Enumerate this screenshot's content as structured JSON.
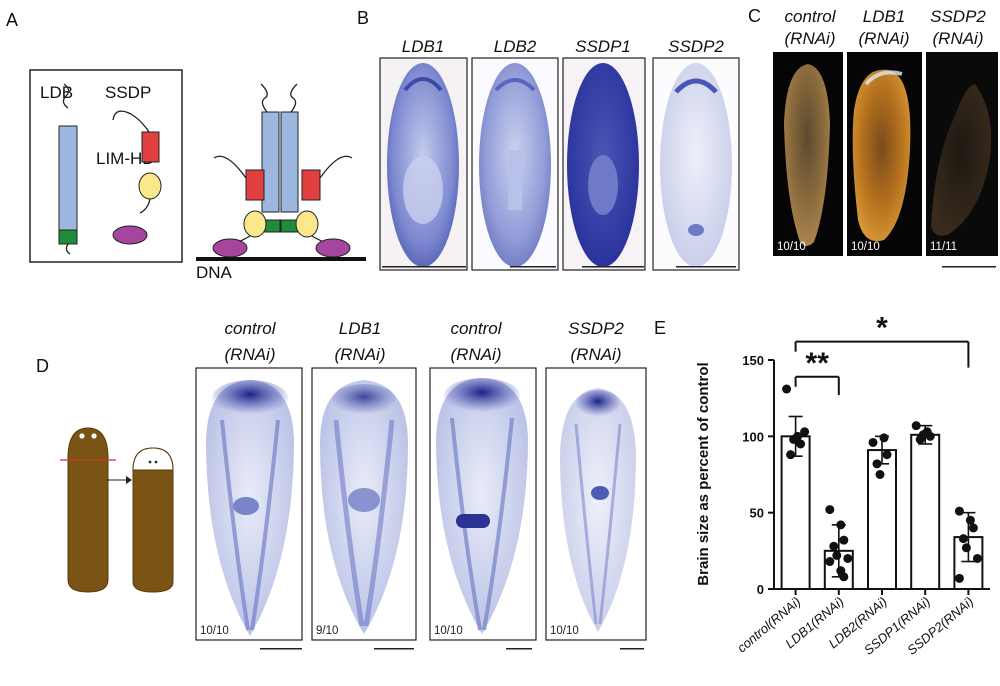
{
  "panels": {
    "A": {
      "letter": "A",
      "labels": {
        "ldb": "LDB",
        "ssdp": "SSDP",
        "limhd": "LIM-HD",
        "dna": "DNA"
      },
      "colors": {
        "ldb": "#9db8e0",
        "ssdp": "#e24040",
        "lim_yellow": "#fbe88a",
        "lim_purple": "#a6459e",
        "green": "#1e8c3a"
      }
    },
    "B": {
      "letter": "B",
      "genes": [
        "LDB1",
        "LDB2",
        "SSDP1",
        "SSDP2"
      ]
    },
    "C": {
      "letter": "C",
      "conditions": [
        {
          "line1": "control",
          "line2": "(RNAi)",
          "count": "10/10"
        },
        {
          "line1": "LDB1",
          "line2": "(RNAi)",
          "count": "10/10"
        },
        {
          "line1": "SSDP2",
          "line2": "(RNAi)",
          "count": "11/11"
        }
      ]
    },
    "D": {
      "letter": "D",
      "conditions": [
        {
          "line1": "control",
          "line2": "(RNAi)",
          "count": "10/10"
        },
        {
          "line1": "LDB1",
          "line2": "(RNAi)",
          "count": "9/10"
        },
        {
          "line1": "control",
          "line2": "(RNAi)",
          "count": "10/10"
        },
        {
          "line1": "SSDP2",
          "line2": "(RNAi)",
          "count": "10/10"
        }
      ]
    },
    "E": {
      "letter": "E"
    }
  },
  "chart_data": {
    "type": "bar",
    "categories": [
      "control(RNAi)",
      "LDB1(RNAi)",
      "LDB2(RNAi)",
      "SSDP1(RNAi)",
      "SSDP2(RNAi)"
    ],
    "values": [
      100,
      25,
      91,
      101,
      34
    ],
    "error": [
      13,
      17,
      9,
      6,
      16
    ],
    "points": [
      [
        131,
        100,
        95,
        88,
        98,
        103
      ],
      [
        52,
        42,
        32,
        28,
        22,
        20,
        18,
        12,
        8
      ],
      [
        96,
        99,
        88,
        82,
        75
      ],
      [
        107,
        103,
        100,
        98,
        101
      ],
      [
        51,
        45,
        40,
        33,
        27,
        20,
        7
      ]
    ],
    "ylabel": "Brain size as percent of control",
    "yticks": [
      0,
      50,
      100,
      150
    ],
    "ylim": [
      0,
      150
    ],
    "significance": [
      {
        "from": 0,
        "to": 1,
        "label": "**"
      },
      {
        "from": 0,
        "to": 4,
        "label": "*"
      }
    ]
  }
}
